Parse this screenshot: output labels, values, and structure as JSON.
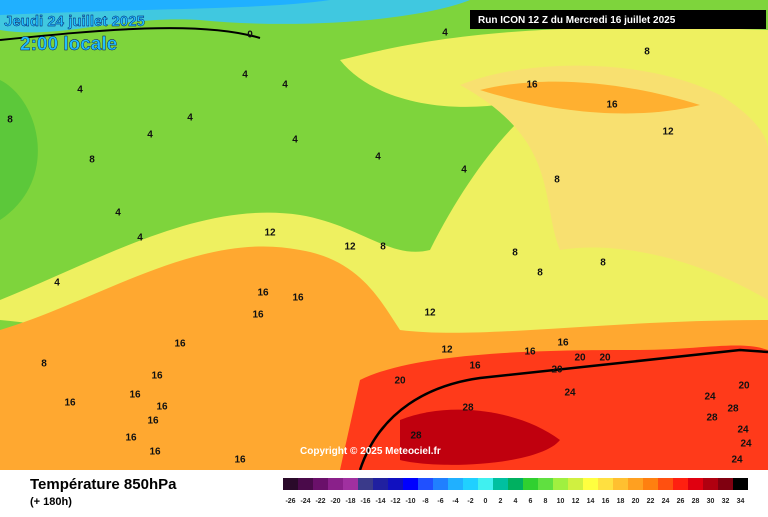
{
  "header": {
    "date": "Jeudi 24 juillet 2025",
    "time": "2:00 locale",
    "run": "Run ICON 12 Z du Mercredi 16 juillet 2025"
  },
  "footer": {
    "title": "Température 850hPa",
    "subtitle": "(+ 180h)",
    "copyright": "Copyright © 2025 Meteociel.fr"
  },
  "legend": {
    "ticks": [
      -26,
      -24,
      -22,
      -20,
      -18,
      -16,
      -14,
      -12,
      -10,
      -8,
      -6,
      -4,
      -2,
      0,
      2,
      4,
      6,
      8,
      10,
      12,
      14,
      16,
      18,
      20,
      22,
      24,
      26,
      28,
      30,
      32,
      34
    ],
    "colors": [
      "#2a0a2a",
      "#4a0a4a",
      "#6a106a",
      "#8a208a",
      "#a030a0",
      "#3a3a8a",
      "#2020a0",
      "#1010c0",
      "#0000ff",
      "#2050ff",
      "#2080ff",
      "#20b0ff",
      "#20d0ff",
      "#40f0f0",
      "#00c0a0",
      "#00b060",
      "#30d030",
      "#60e040",
      "#a0f040",
      "#d0f040",
      "#ffff40",
      "#ffe040",
      "#ffc030",
      "#ffa020",
      "#ff8010",
      "#ff5010",
      "#ff2010",
      "#e00010",
      "#b00010",
      "#800010",
      "#000000"
    ]
  },
  "contour_labels": [
    0,
    4,
    8,
    4,
    4,
    4,
    4,
    4,
    4,
    4,
    8,
    8,
    16,
    16,
    12,
    8,
    4,
    4,
    4,
    12,
    12,
    8,
    8,
    8,
    12,
    4,
    16,
    16,
    16,
    8,
    16,
    12,
    16,
    16,
    20,
    20,
    16,
    20,
    20,
    24,
    20,
    28,
    24,
    28,
    28,
    24,
    24,
    24,
    28,
    16,
    16,
    16,
    16,
    16,
    16,
    16,
    16,
    8
  ]
}
